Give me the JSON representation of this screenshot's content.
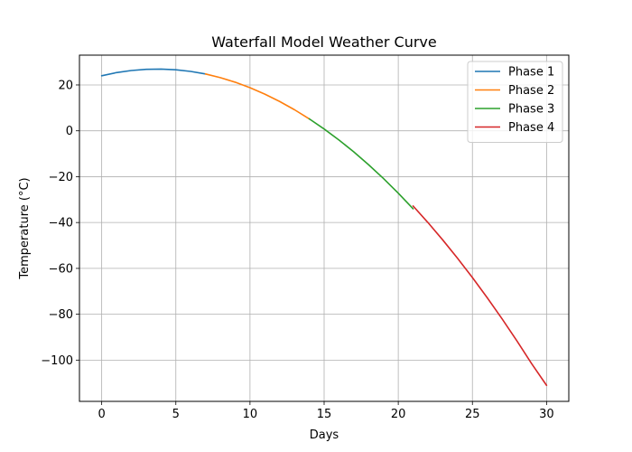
{
  "chart_data": {
    "type": "line",
    "title": "Waterfall Model Weather Curve",
    "xlabel": "Days",
    "ylabel": "Temperature (°C)",
    "xlim": [
      -1.5,
      31.5
    ],
    "ylim": [
      -118,
      33
    ],
    "xticks": [
      0,
      5,
      10,
      15,
      20,
      25,
      30
    ],
    "yticks": [
      -100,
      -80,
      -60,
      -40,
      -20,
      0,
      20
    ],
    "grid": true,
    "legend_position": "top-right",
    "series": [
      {
        "name": "Phase 1",
        "color": "#1f77b4",
        "x": [
          0,
          1,
          2,
          3,
          4,
          5,
          6,
          7
        ],
        "y": [
          24.0,
          25.4,
          26.3,
          26.8,
          26.9,
          26.6,
          25.9,
          24.8
        ]
      },
      {
        "name": "Phase 2",
        "color": "#ff7f0e",
        "x": [
          7,
          8,
          9,
          10,
          11,
          12,
          13,
          14
        ],
        "y": [
          24.8,
          23.2,
          21.2,
          18.8,
          16.0,
          12.8,
          9.2,
          5.2
        ]
      },
      {
        "name": "Phase 3",
        "color": "#2ca02c",
        "x": [
          14,
          15,
          16,
          17,
          18,
          19,
          20,
          21
        ],
        "y": [
          5.2,
          0.8,
          -4.0,
          -9.2,
          -14.8,
          -20.8,
          -27.2,
          -34.0
        ]
      },
      {
        "name": "Phase 4",
        "color": "#d62728",
        "x": [
          21,
          22,
          23,
          24,
          25,
          26,
          27,
          28,
          29,
          30
        ],
        "y": [
          -32.8,
          -40.0,
          -47.6,
          -55.6,
          -64.0,
          -72.8,
          -82.0,
          -91.6,
          -101.6,
          -111.0
        ]
      }
    ]
  }
}
